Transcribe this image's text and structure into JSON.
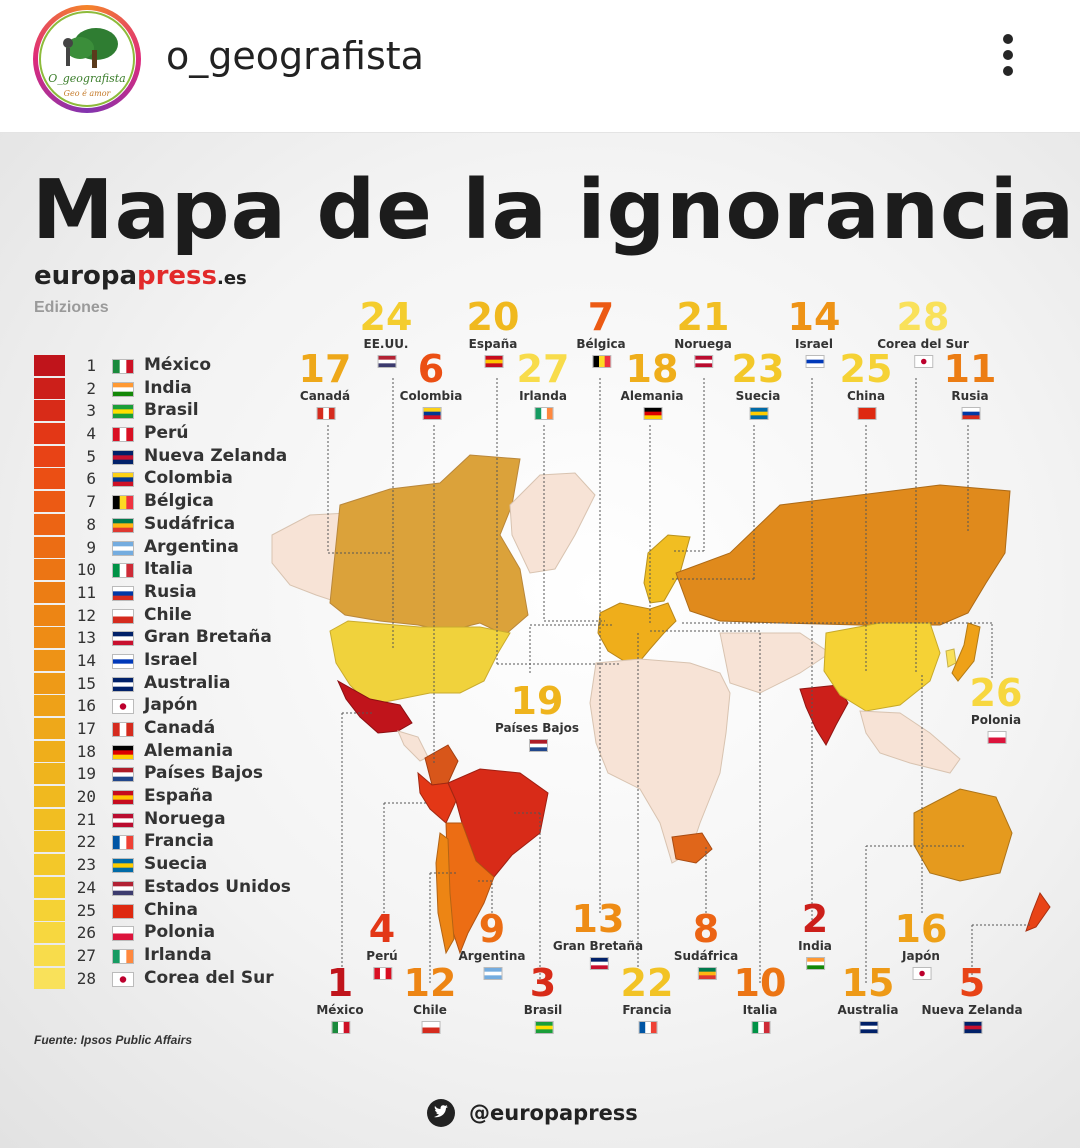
{
  "header": {
    "username": "o_geografista",
    "avatar_text": "O_geografista",
    "avatar_subtext": "Geo é amor",
    "more_icon": "more-options-icon"
  },
  "post": {
    "title": "Mapa de la ignorancia",
    "brand_a": "europa",
    "brand_b": "press",
    "brand_c": ".es",
    "brand_sub": "Ediziones",
    "source": "Fuente: Ipsos Public Affairs",
    "twitter": "@europapress",
    "legend": [
      {
        "n": "1",
        "name": "México",
        "color": "#c0141b"
      },
      {
        "n": "2",
        "name": "India",
        "color": "#cc1f1a"
      },
      {
        "n": "3",
        "name": "Brasil",
        "color": "#d82b18"
      },
      {
        "n": "4",
        "name": "Perú",
        "color": "#e33716"
      },
      {
        "n": "5",
        "name": "Nueva Zelanda",
        "color": "#e84316"
      },
      {
        "n": "6",
        "name": "Colombia",
        "color": "#eb4f14"
      },
      {
        "n": "7",
        "name": "Bélgica",
        "color": "#ec5a14"
      },
      {
        "n": "8",
        "name": "Sudáfrica",
        "color": "#ec6414"
      },
      {
        "n": "9",
        "name": "Argentina",
        "color": "#ec6d14"
      },
      {
        "n": "10",
        "name": "Italia",
        "color": "#ec7514"
      },
      {
        "n": "11",
        "name": "Rusia",
        "color": "#ec7d14"
      },
      {
        "n": "12",
        "name": "Chile",
        "color": "#ed8514"
      },
      {
        "n": "13",
        "name": "Gran Bretaña",
        "color": "#ee8c15"
      },
      {
        "n": "14",
        "name": "Israel",
        "color": "#ee9316"
      },
      {
        "n": "15",
        "name": "Australia",
        "color": "#ee9a17"
      },
      {
        "n": "16",
        "name": "Japón",
        "color": "#eea118"
      },
      {
        "n": "17",
        "name": "Canadá",
        "color": "#eea81a"
      },
      {
        "n": "18",
        "name": "Alemania",
        "color": "#efae1b"
      },
      {
        "n": "19",
        "name": "Países Bajos",
        "color": "#efb41d"
      },
      {
        "n": "20",
        "name": "España",
        "color": "#f0b91f"
      },
      {
        "n": "21",
        "name": "Noruega",
        "color": "#f1be22"
      },
      {
        "n": "22",
        "name": "Francia",
        "color": "#f2c325"
      },
      {
        "n": "23",
        "name": "Suecia",
        "color": "#f3c829"
      },
      {
        "n": "24",
        "name": "Estados Unidos",
        "color": "#f4cd2e"
      },
      {
        "n": "25",
        "name": "China",
        "color": "#f5d235"
      },
      {
        "n": "26",
        "name": "Polonia",
        "color": "#f7d73f"
      },
      {
        "n": "27",
        "name": "Irlanda",
        "color": "#f8dc4b"
      },
      {
        "n": "28",
        "name": "Corea del Sur",
        "color": "#f9e15a"
      }
    ],
    "labels": [
      {
        "rank": "24",
        "name": "EE.UU.",
        "color": "#f4cd2e"
      },
      {
        "rank": "20",
        "name": "España",
        "color": "#f0b91f"
      },
      {
        "rank": "7",
        "name": "Bélgica",
        "color": "#ec5a14"
      },
      {
        "rank": "21",
        "name": "Noruega",
        "color": "#f1be22"
      },
      {
        "rank": "14",
        "name": "Israel",
        "color": "#ee9316"
      },
      {
        "rank": "28",
        "name": "Corea del Sur",
        "color": "#f9e15a"
      },
      {
        "rank": "17",
        "name": "Canadá",
        "color": "#eea81a"
      },
      {
        "rank": "6",
        "name": "Colombia",
        "color": "#eb4f14"
      },
      {
        "rank": "27",
        "name": "Irlanda",
        "color": "#f8dc4b"
      },
      {
        "rank": "18",
        "name": "Alemania",
        "color": "#efae1b"
      },
      {
        "rank": "23",
        "name": "Suecia",
        "color": "#f3c829"
      },
      {
        "rank": "25",
        "name": "China",
        "color": "#f5d235"
      },
      {
        "rank": "11",
        "name": "Rusia",
        "color": "#ec7d14"
      },
      {
        "rank": "19",
        "name": "Países Bajos",
        "color": "#efb41d"
      },
      {
        "rank": "26",
        "name": "Polonia",
        "color": "#f7d73f"
      },
      {
        "rank": "4",
        "name": "Perú",
        "color": "#e33716"
      },
      {
        "rank": "9",
        "name": "Argentina",
        "color": "#ec6d14"
      },
      {
        "rank": "13",
        "name": "Gran Bretaña",
        "color": "#ee8c15"
      },
      {
        "rank": "8",
        "name": "Sudáfrica",
        "color": "#ec6414"
      },
      {
        "rank": "2",
        "name": "India",
        "color": "#cc1f1a"
      },
      {
        "rank": "16",
        "name": "Japón",
        "color": "#eea118"
      },
      {
        "rank": "1",
        "name": "México",
        "color": "#c0141b"
      },
      {
        "rank": "12",
        "name": "Chile",
        "color": "#ed8514"
      },
      {
        "rank": "3",
        "name": "Brasil",
        "color": "#d82b18"
      },
      {
        "rank": "22",
        "name": "Francia",
        "color": "#f2c325"
      },
      {
        "rank": "10",
        "name": "Italia",
        "color": "#ec7514"
      },
      {
        "rank": "15",
        "name": "Australia",
        "color": "#ee9a17"
      },
      {
        "rank": "5",
        "name": "Nueva Zelanda",
        "color": "#e84316"
      }
    ]
  }
}
